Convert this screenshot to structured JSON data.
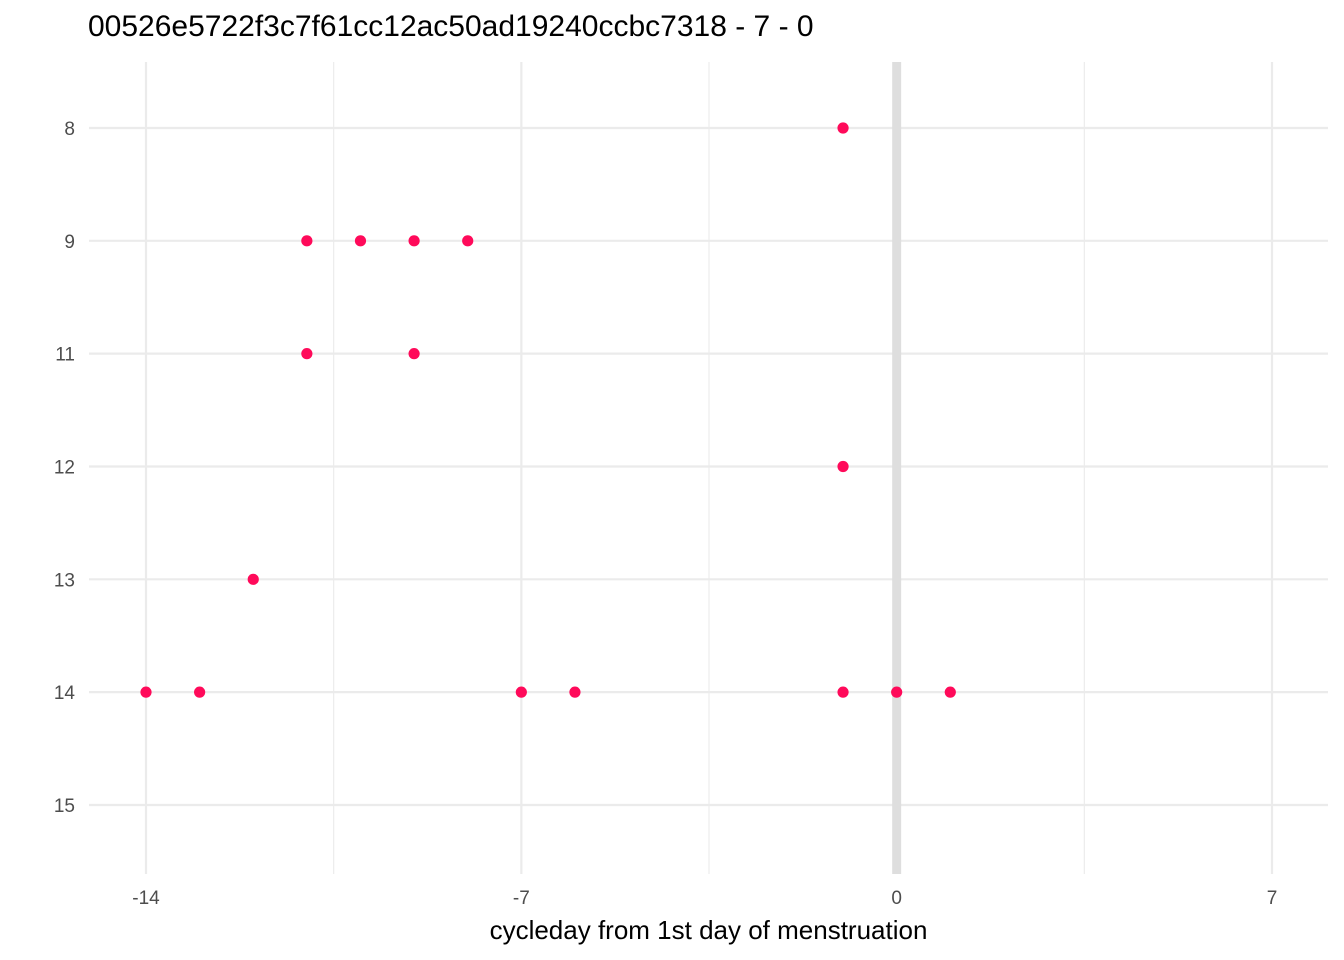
{
  "chart_data": {
    "type": "scatter",
    "title": "00526e5722f3c7f61cc12ac50ad19240ccbc7318 - 7 - 0",
    "xlabel": "cycleday from 1st day of menstruation",
    "ylabel": "",
    "xlim": [
      -14.5,
      7.5
    ],
    "x_ticks": [
      -14,
      -7,
      0,
      7
    ],
    "x_minor_gridlines": [
      -10.5,
      -3.5,
      3.5
    ],
    "y_categories": [
      "8",
      "9",
      "11",
      "12",
      "13",
      "14",
      "15"
    ],
    "y_reversed": true,
    "reference_line_x": 0,
    "grid": true,
    "legend": "none",
    "point_color": "#FF0A5A",
    "series": [
      {
        "points": [
          {
            "x": -1,
            "y": "8"
          },
          {
            "x": -11,
            "y": "9"
          },
          {
            "x": -10,
            "y": "9"
          },
          {
            "x": -9,
            "y": "9"
          },
          {
            "x": -8,
            "y": "9"
          },
          {
            "x": -11,
            "y": "11"
          },
          {
            "x": -9,
            "y": "11"
          },
          {
            "x": -1,
            "y": "12"
          },
          {
            "x": -12,
            "y": "13"
          },
          {
            "x": -14,
            "y": "14"
          },
          {
            "x": -13,
            "y": "14"
          },
          {
            "x": -7,
            "y": "14"
          },
          {
            "x": -6,
            "y": "14"
          },
          {
            "x": -1,
            "y": "14"
          },
          {
            "x": 0,
            "y": "14"
          },
          {
            "x": 1,
            "y": "14"
          }
        ]
      }
    ]
  }
}
